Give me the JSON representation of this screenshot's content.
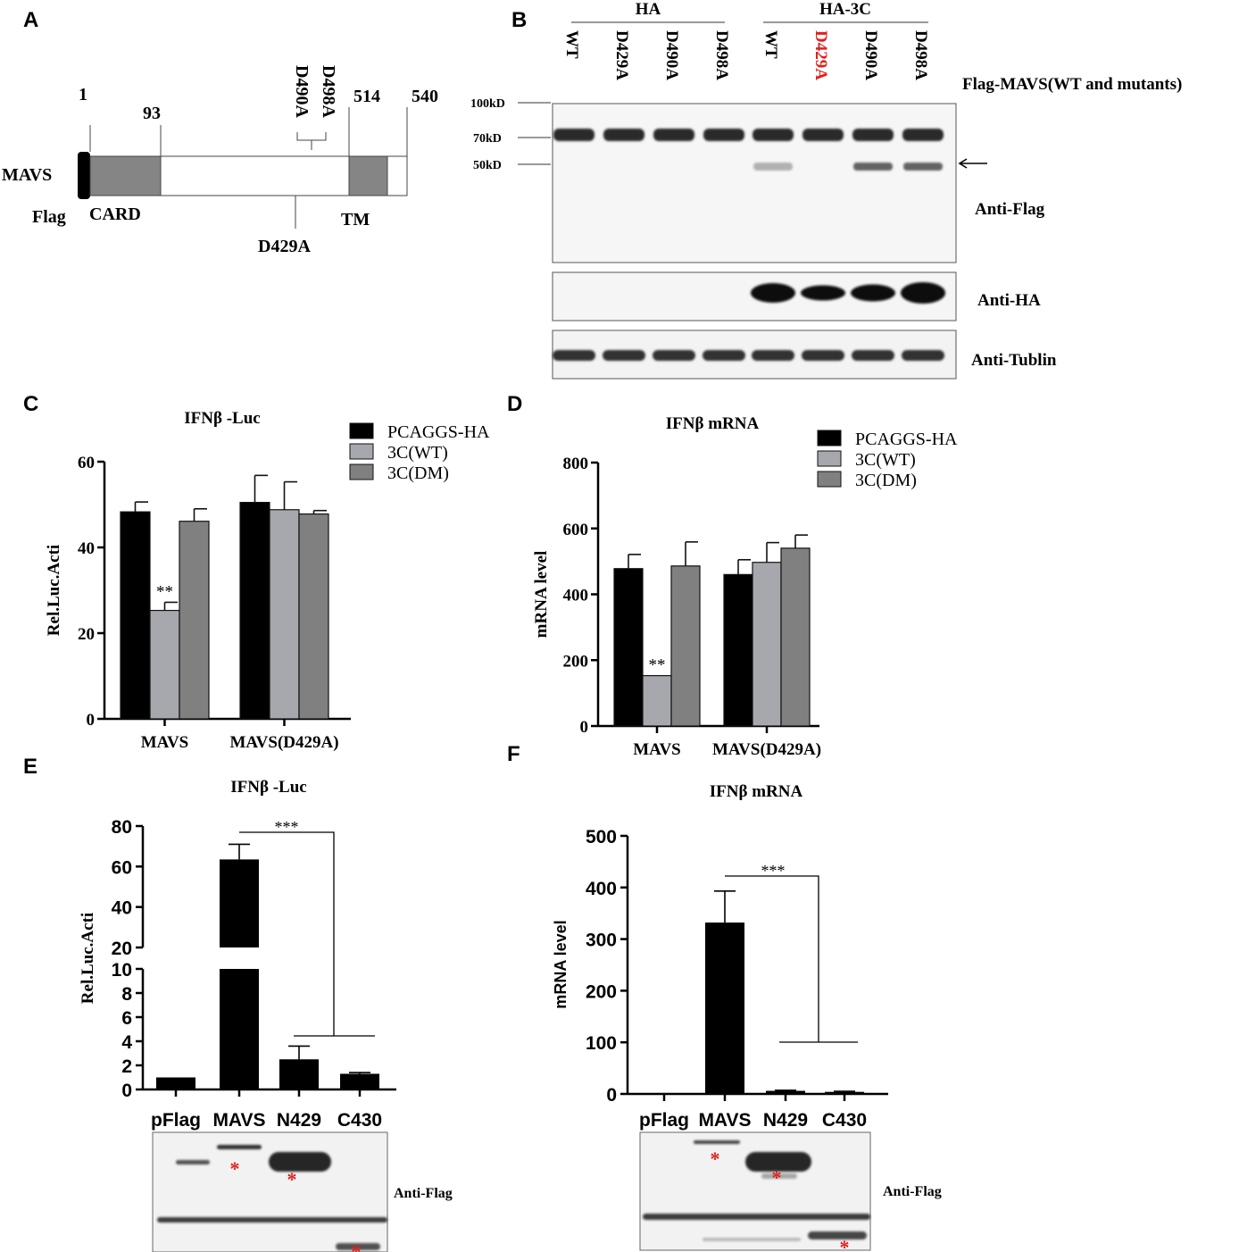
{
  "panel_labels": [
    "A",
    "B",
    "C",
    "D",
    "E",
    "F"
  ],
  "panel_a": {
    "protein": "MAVS",
    "tag": "Flag",
    "domain_card": "CARD",
    "domain_tm": "TM",
    "positions": [
      "1",
      "93",
      "514",
      "540"
    ],
    "mutants_top": [
      "D490A",
      "D498A"
    ],
    "mutant_bottom": "D429A"
  },
  "panel_b": {
    "group_labels": [
      "HA",
      "HA-3C"
    ],
    "lanes": [
      "WT",
      "D429A",
      "D490A",
      "D498A",
      "WT",
      "D429A",
      "D490A",
      "D498A"
    ],
    "highlight_lane_color": "#e0201c",
    "right_title": "Flag-MAVS(WT and mutants)",
    "mw_markers": [
      "100kD",
      "70kD",
      "50kD"
    ],
    "blots": [
      "Anti-Flag",
      "Anti-HA",
      "Anti-Tublin"
    ],
    "cleavage_product_lanes": [
      4,
      6,
      7
    ]
  },
  "chart_data": [
    {
      "panel": "C",
      "type": "bar",
      "title": "IFNβ -Luc",
      "ylabel": "Rel.Luc.Acti",
      "ylim": [
        0,
        60
      ],
      "yticks": [
        "0",
        "20",
        "40",
        "60"
      ],
      "categories": [
        "MAVS",
        "MAVS(D429A)"
      ],
      "series": [
        {
          "name": "PCAGGS-HA",
          "color": "#000000",
          "values": [
            48.3,
            50.5
          ],
          "errors": [
            2.3,
            6.3
          ]
        },
        {
          "name": "3C(WT)",
          "color": "#a7a8ad",
          "values": [
            25.3,
            48.8
          ],
          "errors": [
            1.9,
            6.5
          ]
        },
        {
          "name": "3C(DM)",
          "color": "#808080",
          "values": [
            46.1,
            47.8
          ],
          "errors": [
            2.9,
            0.8
          ]
        }
      ],
      "annotations": [
        "**"
      ]
    },
    {
      "panel": "D",
      "type": "bar",
      "title": "IFNβ  mRNA",
      "ylabel": "mRNA level",
      "ylim": [
        0,
        800
      ],
      "yticks": [
        "0",
        "200",
        "400",
        "600",
        "800"
      ],
      "categories": [
        "MAVS",
        "MAVS(D429A)"
      ],
      "series": [
        {
          "name": "PCAGGS-HA",
          "color": "#000000",
          "values": [
            478,
            460
          ],
          "errors": [
            43,
            45
          ]
        },
        {
          "name": "3C(WT)",
          "color": "#a7a8ad",
          "values": [
            153,
            497
          ],
          "errors": [
            0,
            60
          ]
        },
        {
          "name": "3C(DM)",
          "color": "#808080",
          "values": [
            486,
            540
          ],
          "errors": [
            73,
            40
          ]
        }
      ],
      "annotations": [
        "**"
      ]
    },
    {
      "panel": "E",
      "type": "bar",
      "title": "IFNβ -Luc",
      "ylabel": "Rel.Luc.Acti",
      "broken_axis": {
        "lower": [
          0,
          10
        ],
        "upper": [
          20,
          80
        ]
      },
      "yticks_lower": [
        "0",
        "2",
        "4",
        "6",
        "8",
        "10"
      ],
      "yticks_upper": [
        "20",
        "40",
        "60",
        "80"
      ],
      "categories": [
        "pFlag",
        "MAVS",
        "N429",
        "C430"
      ],
      "series": [
        {
          "color": "#000000",
          "values": [
            1.0,
            63.5,
            2.5,
            1.3
          ],
          "errors": [
            0,
            7.5,
            1.1,
            0.1
          ]
        }
      ],
      "annotations": [
        "***"
      ]
    },
    {
      "panel": "F",
      "type": "bar",
      "title": "IFNβ  mRNA",
      "ylabel": "mRNA level",
      "ylim": [
        0,
        500
      ],
      "yticks": [
        "0",
        "100",
        "200",
        "300",
        "400",
        "500"
      ],
      "categories": [
        "pFlag",
        "MAVS",
        "N429",
        "C430"
      ],
      "series": [
        {
          "color": "#000000",
          "values": [
            0,
            332,
            6,
            4
          ],
          "errors": [
            0,
            61,
            1,
            1
          ]
        }
      ],
      "annotations": [
        "***"
      ]
    }
  ],
  "blot_label_ef": "Anti-Flag",
  "marker_star": "*",
  "marker_color": "#e0201c"
}
